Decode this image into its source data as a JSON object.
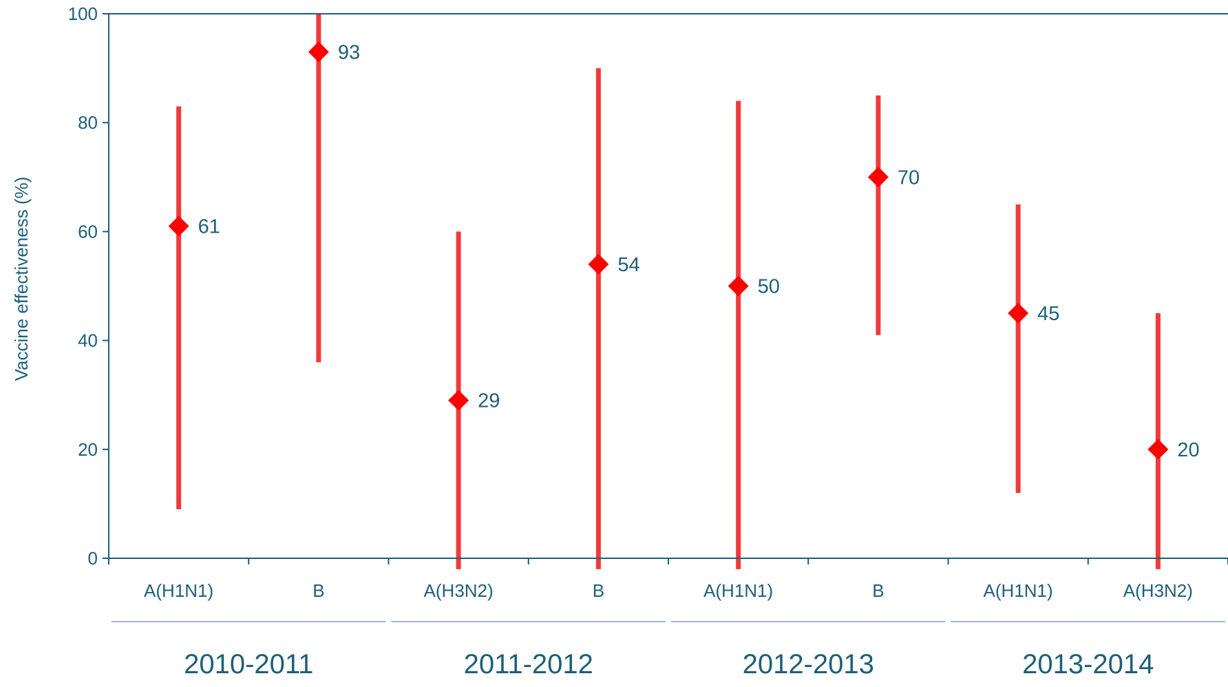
{
  "chart_data": {
    "type": "scatter",
    "title": "",
    "xlabel": "",
    "ylabel": "Vaccine effectiveness (%)",
    "ylim": [
      0,
      100
    ],
    "yticks": [
      "0",
      "20",
      "40",
      "60",
      "80",
      "100"
    ],
    "grid": false,
    "groups": [
      "2010-2011",
      "2011-2012",
      "2012-2013",
      "2013-2014"
    ],
    "categories": [
      "A(H1N1)",
      "B",
      "A(H3N2)",
      "B",
      "A(H1N1)",
      "B",
      "A(H1N1)",
      "A(H3N2)"
    ],
    "group_of_category": [
      0,
      0,
      1,
      1,
      2,
      2,
      3,
      3
    ],
    "values": [
      61,
      93,
      29,
      54,
      50,
      70,
      45,
      20
    ],
    "value_labels": [
      "61",
      "93",
      "29",
      "54",
      "50",
      "70",
      "45",
      "20"
    ],
    "ci_lower": [
      9,
      36,
      -2,
      -2,
      -2,
      41,
      12,
      -2
    ],
    "ci_upper": [
      83,
      100,
      60,
      90,
      84,
      85,
      65,
      45
    ],
    "colors": {
      "marker": "#ff0000",
      "error_bar": "#ee3b3b",
      "axis": "#1d5f7a",
      "text": "#1d5f7a",
      "group_underline": "#9fb6c6"
    }
  }
}
